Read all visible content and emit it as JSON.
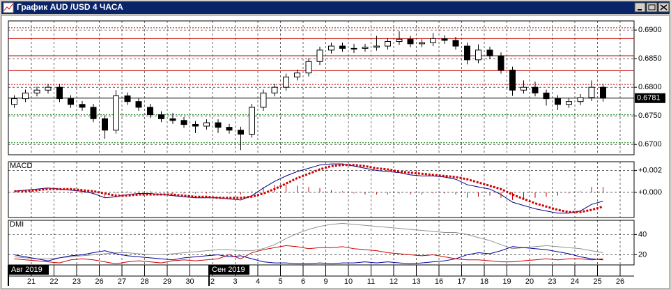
{
  "window": {
    "title": "График AUD /USD  4 ЧАСА"
  },
  "x_axis": {
    "categories": [
      "21",
      "22",
      "23",
      "26",
      "27",
      "28",
      "29",
      "30",
      "2",
      "3",
      "4",
      "5",
      "6",
      "9",
      "10",
      "11",
      "12",
      "13",
      "16",
      "17",
      "18",
      "19",
      "20",
      "23",
      "24",
      "25",
      "26"
    ],
    "months": [
      "Авг 2019",
      "Сен 2019"
    ]
  },
  "chart_data": [
    {
      "type": "candlestick",
      "ylim": [
        0.6682,
        0.6916
      ],
      "yticks": [
        {
          "value": 0.69,
          "label": "0.6900"
        },
        {
          "value": 0.685,
          "label": "0.6850"
        },
        {
          "value": 0.68,
          "label": "0.6800"
        },
        {
          "value": 0.675,
          "label": "0.6750"
        },
        {
          "value": 0.67,
          "label": "0.6700"
        }
      ],
      "grid": true,
      "open": [
        0.677,
        0.678,
        0.679,
        0.6795,
        0.68,
        0.678,
        0.677,
        0.6765,
        0.6745,
        0.6725,
        0.6785,
        0.6775,
        0.6765,
        0.6752,
        0.6745,
        0.6742,
        0.6735,
        0.6732,
        0.6738,
        0.673,
        0.6725,
        0.6718,
        0.6765,
        0.679,
        0.68,
        0.6818,
        0.6825,
        0.6845,
        0.6865,
        0.6872,
        0.6868,
        0.6868,
        0.687,
        0.6872,
        0.688,
        0.6884,
        0.6876,
        0.6878,
        0.6885,
        0.6882,
        0.6872,
        0.6848,
        0.6865,
        0.6855,
        0.683,
        0.6795,
        0.68,
        0.679,
        0.678,
        0.677,
        0.6775,
        0.6782,
        0.68
      ],
      "high": [
        0.6786,
        0.6796,
        0.6801,
        0.6806,
        0.6806,
        0.6786,
        0.6776,
        0.6771,
        0.6751,
        0.6795,
        0.6791,
        0.6781,
        0.6771,
        0.6758,
        0.6755,
        0.6748,
        0.6741,
        0.6744,
        0.6744,
        0.6736,
        0.6731,
        0.6771,
        0.6796,
        0.6806,
        0.6824,
        0.6831,
        0.6851,
        0.6871,
        0.6878,
        0.6878,
        0.6876,
        0.6876,
        0.689,
        0.6886,
        0.6898,
        0.689,
        0.6884,
        0.6895,
        0.6891,
        0.6888,
        0.6878,
        0.6875,
        0.6871,
        0.6861,
        0.6836,
        0.6812,
        0.681,
        0.6796,
        0.6786,
        0.6781,
        0.6788,
        0.6812,
        0.6806
      ],
      "low": [
        0.6764,
        0.6774,
        0.6784,
        0.6789,
        0.6774,
        0.6764,
        0.6759,
        0.6739,
        0.671,
        0.6719,
        0.6769,
        0.6759,
        0.6746,
        0.6739,
        0.6736,
        0.6729,
        0.672,
        0.6726,
        0.672,
        0.6719,
        0.669,
        0.6712,
        0.6759,
        0.6784,
        0.6794,
        0.6812,
        0.6819,
        0.6839,
        0.6859,
        0.6862,
        0.686,
        0.6862,
        0.6864,
        0.6866,
        0.6874,
        0.687,
        0.687,
        0.6872,
        0.6876,
        0.6866,
        0.684,
        0.6842,
        0.6849,
        0.6824,
        0.6785,
        0.6789,
        0.6784,
        0.6768,
        0.676,
        0.6764,
        0.6769,
        0.6776,
        0.6775
      ],
      "close": [
        0.678,
        0.679,
        0.6795,
        0.68,
        0.678,
        0.677,
        0.6765,
        0.6745,
        0.6725,
        0.6785,
        0.6775,
        0.6765,
        0.6752,
        0.6745,
        0.6742,
        0.6735,
        0.6732,
        0.6738,
        0.673,
        0.6725,
        0.6718,
        0.6765,
        0.679,
        0.68,
        0.6818,
        0.6825,
        0.6845,
        0.6865,
        0.6872,
        0.6868,
        0.6868,
        0.687,
        0.6872,
        0.688,
        0.6884,
        0.6876,
        0.6878,
        0.6885,
        0.6882,
        0.6872,
        0.6848,
        0.6865,
        0.6855,
        0.683,
        0.6795,
        0.68,
        0.679,
        0.678,
        0.677,
        0.6775,
        0.6782,
        0.68,
        0.6781
      ],
      "levels": [
        {
          "value": 0.6904,
          "color": "#c00000",
          "style": "dotted"
        },
        {
          "value": 0.6885,
          "color": "#c00000",
          "style": "solid"
        },
        {
          "value": 0.6855,
          "color": "#c00000",
          "style": "solid"
        },
        {
          "value": 0.6829,
          "color": "#c00000",
          "style": "solid"
        },
        {
          "value": 0.6805,
          "color": "#c00000",
          "style": "dotted"
        },
        {
          "value": 0.6752,
          "color": "#008000",
          "style": "dotted"
        },
        {
          "value": 0.6703,
          "color": "#008000",
          "style": "dotted"
        }
      ],
      "last_price": {
        "value": 0.6781,
        "label": "0.6781"
      }
    },
    {
      "type": "macd",
      "title": "MACD",
      "ylim": [
        -0.0023,
        0.0028
      ],
      "yticks": [
        {
          "value": 0.002,
          "label": "+0.002"
        },
        {
          "value": 0,
          "label": "+0.000"
        }
      ],
      "grid": true,
      "series": [
        {
          "color": "#000080",
          "style": "line",
          "values": [
            0.0001,
            0.0002,
            0.0003,
            0.0004,
            0.0003,
            0.0002,
            0.0001,
            -0.0001,
            -0.0005,
            -0.0004,
            -0.0002,
            -0.0001,
            -0.0001,
            -0.0002,
            -0.0003,
            -0.0004,
            -0.0005,
            -0.0005,
            -0.0005,
            -0.0006,
            -0.0007,
            -0.0003,
            0.0004,
            0.001,
            0.0015,
            0.0019,
            0.0022,
            0.0025,
            0.0026,
            0.0026,
            0.0024,
            0.0022,
            0.002,
            0.0019,
            0.0018,
            0.0016,
            0.0015,
            0.0015,
            0.0014,
            0.0012,
            0.0007,
            0.0005,
            0.0003,
            -0.0002,
            -0.0009,
            -0.0012,
            -0.0015,
            -0.0017,
            -0.0019,
            -0.0019,
            -0.0017,
            -0.0011,
            -0.0008
          ]
        },
        {
          "color": "#d00000",
          "style": "dotted",
          "values": [
            0.0001,
            0.0001,
            0.0002,
            0.0003,
            0.0003,
            0.0003,
            0.0002,
            0.0001,
            -0.0001,
            -0.0003,
            -0.0003,
            -0.0002,
            -0.0002,
            -0.0002,
            -0.0002,
            -0.0003,
            -0.0004,
            -0.0004,
            -0.0005,
            -0.0005,
            -0.0005,
            -0.0004,
            -0.0001,
            0.0003,
            0.0008,
            0.0013,
            0.0017,
            0.0021,
            0.0024,
            0.0025,
            0.0025,
            0.0024,
            0.0022,
            0.0021,
            0.0019,
            0.0018,
            0.0017,
            0.0016,
            0.0015,
            0.0014,
            0.0012,
            0.0009,
            0.0006,
            0.0003,
            -0.0002,
            -0.0006,
            -0.001,
            -0.0013,
            -0.0016,
            -0.0018,
            -0.0018,
            -0.0016,
            -0.0013
          ]
        },
        {
          "color": "#d00000",
          "style": "histogram",
          "values": [
            0,
            0.0001,
            0.0001,
            0.0001,
            0,
            -0.0001,
            -0.0001,
            -0.0002,
            -0.0004,
            -0.0001,
            0.0001,
            0.0001,
            0.0001,
            0,
            -0.0001,
            -0.0001,
            -0.0001,
            -0.0001,
            0,
            -0.0001,
            -0.0002,
            0.0001,
            0.0005,
            0.0007,
            0.0007,
            0.0006,
            0.0005,
            0.0004,
            0.0002,
            0.0001,
            -0.0001,
            -0.0002,
            -0.0002,
            -0.0002,
            -0.0001,
            -0.0002,
            -0.0002,
            -0.0001,
            -0.0001,
            -0.0002,
            -0.0005,
            -0.0004,
            -0.0003,
            -0.0005,
            -0.0007,
            -0.0006,
            -0.0005,
            -0.0004,
            -0.0003,
            -0.0001,
            0.0001,
            0.0005,
            0.0005
          ]
        }
      ]
    },
    {
      "type": "dmi",
      "title": "DMI",
      "ylim": [
        10,
        54
      ],
      "yticks": [
        40,
        20
      ],
      "grid": true,
      "series": [
        {
          "color": "#909090",
          "style": "line",
          "values": [
            18,
            17,
            16,
            16,
            17,
            18,
            19,
            20,
            21,
            22,
            22,
            21,
            20,
            20,
            21,
            22,
            23,
            24,
            25,
            25,
            24,
            24,
            26,
            30,
            36,
            41,
            45,
            48,
            50,
            51,
            50,
            49,
            48,
            47,
            46,
            45,
            44,
            43,
            42,
            42,
            40,
            37,
            34,
            30,
            26,
            27,
            28,
            29,
            28,
            27,
            26,
            24,
            22
          ]
        },
        {
          "color": "#0000a0",
          "style": "line",
          "values": [
            20,
            18,
            16,
            14,
            17,
            19,
            20,
            22,
            24,
            21,
            19,
            18,
            17,
            16,
            15,
            17,
            18,
            19,
            20,
            18,
            19,
            16,
            13,
            12,
            12,
            11,
            11,
            12,
            11,
            12,
            12,
            13,
            12,
            13,
            12,
            11,
            12,
            13,
            14,
            16,
            20,
            22,
            21,
            24,
            28,
            27,
            26,
            25,
            23,
            21,
            18,
            16,
            15
          ]
        },
        {
          "color": "#d00000",
          "style": "line",
          "values": [
            16,
            15,
            14,
            13,
            12,
            15,
            16,
            15,
            13,
            11,
            13,
            14,
            13,
            12,
            14,
            15,
            14,
            15,
            16,
            20,
            16,
            22,
            25,
            27,
            29,
            28,
            26,
            27,
            27,
            28,
            26,
            25,
            24,
            22,
            21,
            20,
            19,
            20,
            18,
            16,
            15,
            15,
            14,
            13,
            13,
            14,
            15,
            16,
            15,
            16,
            16,
            15,
            16
          ]
        }
      ]
    }
  ]
}
